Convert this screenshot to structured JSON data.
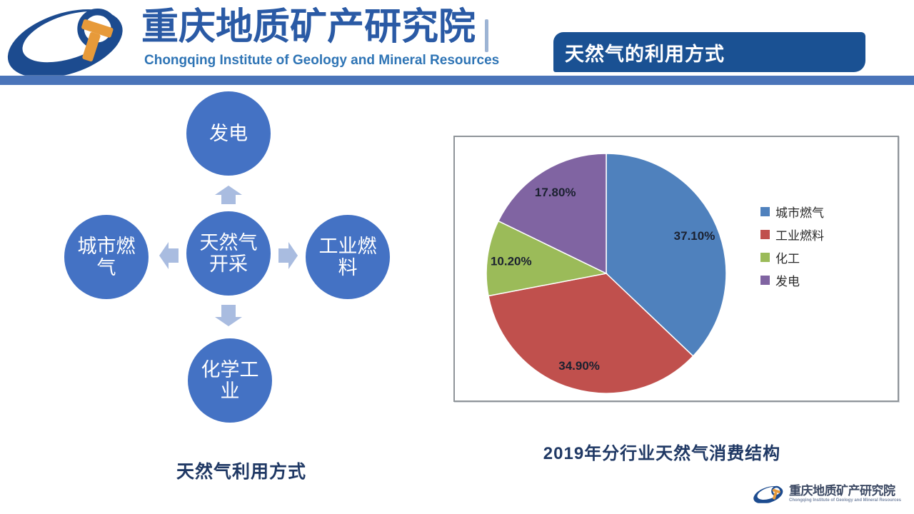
{
  "header": {
    "org_name_zh": "重庆地质矿产研究院",
    "org_name_en": "Chongqing Institute of Geology and Mineral Resources",
    "slide_title": "天然气的利用方式"
  },
  "colors": {
    "brand_blue": "#2a5aa5",
    "banner_bg": "#1a5193",
    "divider_blue": "#4a74b9",
    "node_blue": "#4472C4",
    "arrow_blue": "#a9bce0",
    "caption_navy": "#1f3864"
  },
  "diagram": {
    "caption": "天然气利用方式",
    "top": {
      "lines": [
        "发电"
      ]
    },
    "left": {
      "lines": [
        "城市燃",
        "气"
      ]
    },
    "center": {
      "lines": [
        "天然气",
        "开采"
      ]
    },
    "right": {
      "lines": [
        "工业燃",
        "料"
      ]
    },
    "bottom": {
      "lines": [
        "化学工",
        "业"
      ]
    }
  },
  "chart_data": {
    "type": "pie",
    "title": "2019年分行业天然气消费结构",
    "categories": [
      "城市燃气",
      "工业燃料",
      "化工",
      "发电"
    ],
    "values": [
      37.1,
      34.9,
      10.2,
      17.8
    ],
    "labels": [
      "37.10%",
      "34.90%",
      "10.20%",
      "17.80%"
    ],
    "colors": [
      "#4F81BD",
      "#C0504D",
      "#9BBB59",
      "#8064A2"
    ],
    "start_angle_deg": 0,
    "direction": "clockwise",
    "legend_position": "right",
    "label_radius_ratio": 0.8
  },
  "footer": {
    "org_name_zh": "重庆地质矿产研究院",
    "org_name_en": "Chongqing Institute of Geology and Mineral Resources"
  }
}
